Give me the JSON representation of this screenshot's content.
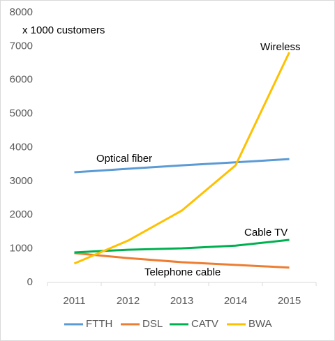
{
  "chart_data": {
    "type": "line",
    "categories": [
      "2011",
      "2012",
      "2013",
      "2014",
      "2015"
    ],
    "series": [
      {
        "name": "FTTH",
        "color": "#5b9bd5",
        "values": [
          3265,
          3370,
          3470,
          3560,
          3657
        ]
      },
      {
        "name": "DSL",
        "color": "#ed7d31",
        "values": [
          870,
          720,
          600,
          520,
          440
        ]
      },
      {
        "name": "CATV",
        "color": "#00b050",
        "values": [
          890,
          970,
          1010,
          1090,
          1260
        ]
      },
      {
        "name": "BWA",
        "color": "#ffc000",
        "values": [
          560,
          1240,
          2130,
          3470,
          6820
        ]
      }
    ],
    "ylim": [
      0,
      8000
    ],
    "yticks": [
      0,
      1000,
      2000,
      3000,
      4000,
      5000,
      6000,
      7000,
      8000
    ],
    "annotations": [
      "x 1000 customers",
      "Wireless",
      "Optical fiber",
      "Cable TV",
      "Telephone cable"
    ],
    "legend": "bottom"
  }
}
